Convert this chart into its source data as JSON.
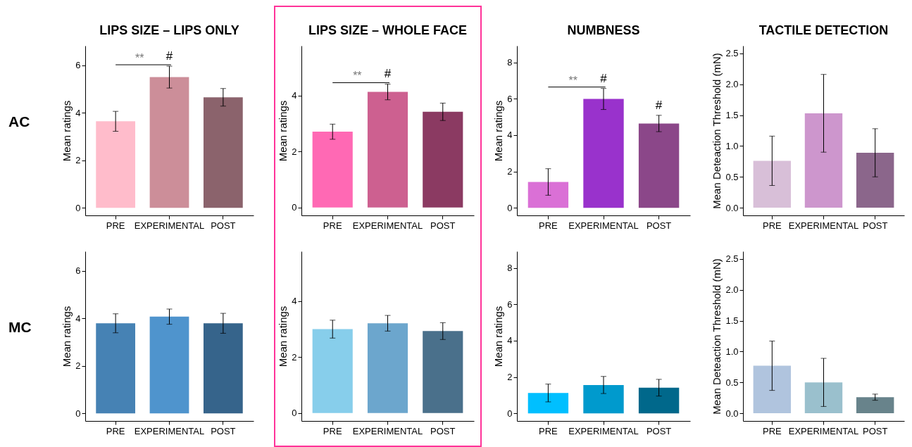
{
  "chart_data": [
    {
      "type": "bar",
      "title": "LIPS SIZE – LIPS ONLY",
      "ylabel": "Mean ratings",
      "categories": [
        "PRE",
        "EXPERIMENTAL",
        "POST"
      ],
      "values": [
        3.64,
        5.5,
        4.65
      ],
      "errors": [
        0.42,
        0.46,
        0.37
      ],
      "colors": [
        "#ffbccb",
        "#cc8e99",
        "#8b636c"
      ],
      "ylim": [
        -0.32,
        6.82
      ],
      "yticks": [
        0,
        2,
        4,
        6
      ],
      "grid": false,
      "legend": false,
      "annotations": [
        "AC",
        "**",
        {
          "text": "#",
          "x": "EXPERIMENTAL",
          "y": 5.5
        }
      ]
    },
    {
      "type": "bar",
      "title": "LIPS SIZE – WHOLE FACE",
      "ylabel": "Mean ratings",
      "categories": [
        "PRE",
        "EXPERIMENTAL",
        "POST"
      ],
      "values": [
        2.71,
        4.13,
        3.42
      ],
      "errors": [
        0.27,
        0.28,
        0.31
      ],
      "colors": [
        "#ff69b4",
        "#cd6090",
        "#8b3a62"
      ],
      "ylim": [
        -0.28,
        5.78
      ],
      "yticks": [
        0,
        2,
        4
      ],
      "grid": false,
      "legend": false,
      "annotations": [
        "**",
        {
          "text": "#",
          "x": "EXPERIMENTAL",
          "y": 4.13
        }
      ]
    },
    {
      "type": "bar",
      "title": "NUMBNESS",
      "ylabel": "Mean ratings",
      "categories": [
        "PRE",
        "EXPERIMENTAL",
        "POST"
      ],
      "values": [
        1.42,
        5.99,
        4.64
      ],
      "errors": [
        0.73,
        0.58,
        0.45
      ],
      "colors": [
        "#da70d6",
        "#9932cc",
        "#8b4789"
      ],
      "ylim": [
        -0.42,
        8.92
      ],
      "yticks": [
        0,
        2,
        4,
        6,
        8
      ],
      "grid": false,
      "legend": false,
      "annotations": [
        "**",
        {
          "text": "#",
          "x": "EXPERIMENTAL",
          "y": 5.99
        },
        {
          "text": "#",
          "x": "POST",
          "y": 4.64
        }
      ]
    },
    {
      "type": "bar",
      "title": "TACTILE DETECTION",
      "ylabel": "Mean Deteaction Threshold (mN)",
      "categories": [
        "PRE",
        "EXPERIMENTAL",
        "POST"
      ],
      "values": [
        0.76,
        1.53,
        0.89
      ],
      "errors": [
        0.4,
        0.63,
        0.39
      ],
      "colors": [
        "#d8bfd8",
        "#cd96cd",
        "#8b668b"
      ],
      "ylim": [
        -0.125,
        2.625
      ],
      "yticks": [
        {
          "value": 0,
          "label": "0.0"
        },
        0.5,
        {
          "value": 1,
          "label": "1.0"
        },
        1.5,
        {
          "value": 2,
          "label": "2.0"
        },
        2.5
      ],
      "grid": false,
      "legend": false
    },
    {
      "type": "bar",
      "ylabel": "Mean ratings",
      "categories": [
        "PRE",
        "EXPERIMENTAL",
        "POST"
      ],
      "values": [
        3.79,
        4.07,
        3.79
      ],
      "errors": [
        0.4,
        0.32,
        0.42
      ],
      "colors": [
        "#4682b4",
        "#4f94cd",
        "#36648b"
      ],
      "ylim": [
        -0.32,
        6.82
      ],
      "yticks": [
        0,
        2,
        4,
        6
      ],
      "grid": false,
      "legend": false,
      "annotations": [
        "MC"
      ]
    },
    {
      "type": "bar",
      "ylabel": "Mean ratings",
      "categories": [
        "PRE",
        "EXPERIMENTAL",
        "POST"
      ],
      "values": [
        3.0,
        3.21,
        2.93
      ],
      "errors": [
        0.32,
        0.28,
        0.3
      ],
      "colors": [
        "#87ceeb",
        "#6ca6cd",
        "#4a708b"
      ],
      "ylim": [
        -0.28,
        5.78
      ],
      "yticks": [
        0,
        2,
        4
      ],
      "grid": false,
      "legend": false
    },
    {
      "type": "bar",
      "ylabel": "Mean ratings",
      "categories": [
        "PRE",
        "EXPERIMENTAL",
        "POST"
      ],
      "values": [
        1.12,
        1.56,
        1.41
      ],
      "errors": [
        0.49,
        0.47,
        0.46
      ],
      "colors": [
        "#00bfff",
        "#009acd",
        "#00688b"
      ],
      "ylim": [
        -0.42,
        8.92
      ],
      "yticks": [
        0,
        2,
        4,
        6,
        8
      ],
      "grid": false,
      "legend": false
    },
    {
      "type": "bar",
      "ylabel": "Mean Deteaction Threshold (mN)",
      "categories": [
        "PRE",
        "EXPERIMENTAL",
        "POST"
      ],
      "values": [
        0.77,
        0.5,
        0.26
      ],
      "errors": [
        0.4,
        0.39,
        0.05
      ],
      "colors": [
        "#b0c4de",
        "#9ac0cd",
        "#68838b"
      ],
      "ylim": [
        -0.125,
        2.625
      ],
      "yticks": [
        {
          "value": 0,
          "label": "0.0"
        },
        0.5,
        {
          "value": 1,
          "label": "1.0"
        },
        1.5,
        {
          "value": 2,
          "label": "2.0"
        },
        2.5
      ],
      "grid": false,
      "legend": false
    }
  ]
}
